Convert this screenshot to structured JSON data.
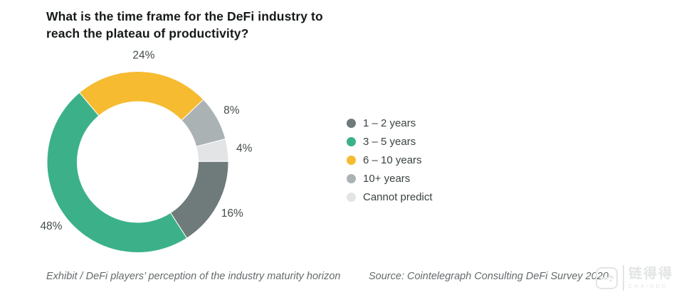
{
  "page": {
    "background": "#ffffff"
  },
  "title": {
    "lines": [
      "What is the time frame for the DeFi industry to",
      "reach the plateau of productivity?"
    ]
  },
  "chart_data": {
    "type": "pie",
    "donut": true,
    "title": "What is the time frame for the DeFi industry to reach the plateau of productivity?",
    "start_angle_deg": -40,
    "legend_position": "right",
    "segments": [
      {
        "label": "6 – 10 years",
        "value": 24,
        "pct_label": "24%",
        "color": "#F6BB30"
      },
      {
        "label": "10+ years",
        "value": 8,
        "pct_label": "8%",
        "color": "#ABB2B4"
      },
      {
        "label": "Cannot predict",
        "value": 4,
        "pct_label": "4%",
        "color": "#E2E4E5"
      },
      {
        "label": "1 – 2 years",
        "value": 16,
        "pct_label": "16%",
        "color": "#6F7A7A"
      },
      {
        "label": "3 – 5 years",
        "value": 48,
        "pct_label": "48%",
        "color": "#3CB189"
      }
    ],
    "legend_order": [
      "1 – 2 years",
      "3 – 5 years",
      "6 – 10 years",
      "10+ years",
      "Cannot predict"
    ]
  },
  "footer": {
    "exhibit": "Exhibit / DeFi players’ perception of the industry maturity horizon",
    "source": "Source: Cointelegraph Consulting DeFi Survey 2020"
  },
  "watermark": {
    "cjk": "链得得",
    "latin": "CHAINDD"
  }
}
